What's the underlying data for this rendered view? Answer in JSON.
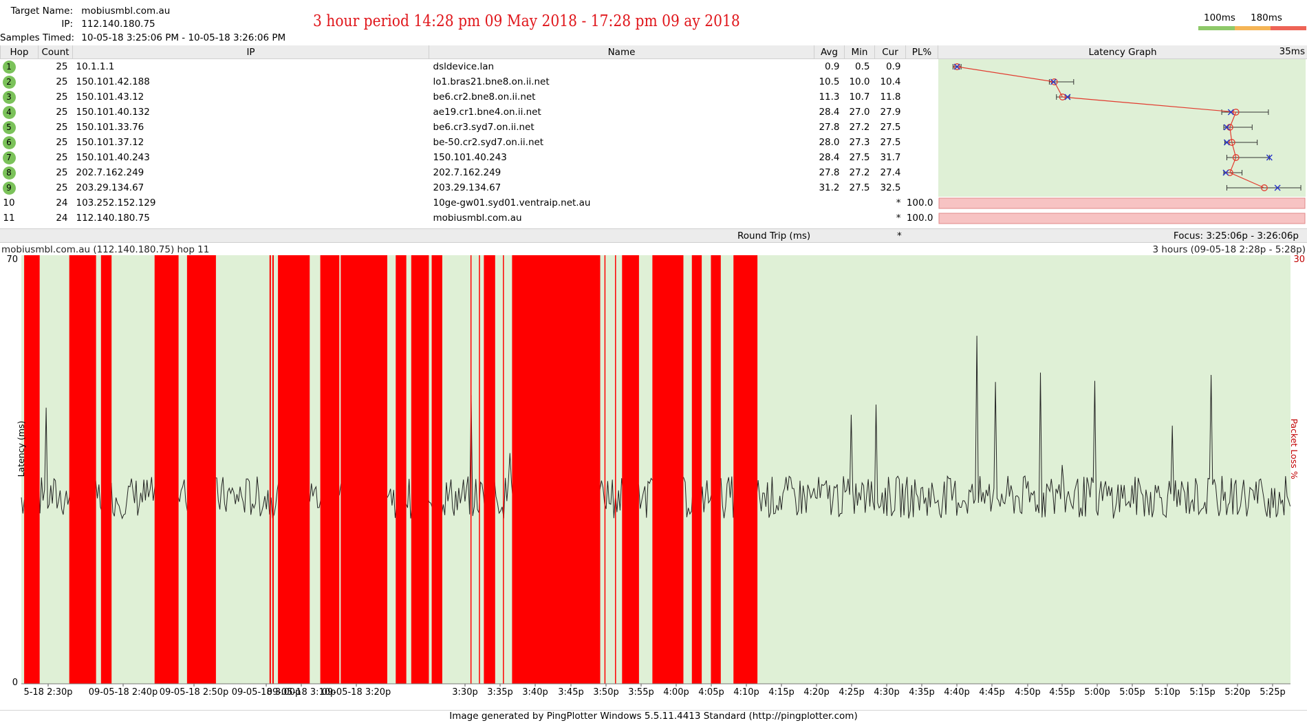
{
  "header": {
    "target_label": "Target Name:",
    "target_value": "mobiusmbl.com.au",
    "ip_label": "IP:",
    "ip_value": "112.140.180.75",
    "samples_label": "Samples Timed:",
    "samples_value": "10-05-18 3:25:06 PM - 10-05-18 3:26:06 PM",
    "annotation": "3 hour period 14:28 pm 09 May 2018 - 17:28 pm 09 ay 2018"
  },
  "latency_scale": {
    "label_100": "100ms",
    "label_180": "180ms",
    "colors": [
      "#8ec969",
      "#f5b556",
      "#ee6356"
    ]
  },
  "columns": {
    "hop": "Hop",
    "count": "Count",
    "ip": "IP",
    "name": "Name",
    "avg": "Avg",
    "min": "Min",
    "cur": "Cur",
    "pl": "PL%",
    "graph": "Latency Graph",
    "graph_max": "35ms"
  },
  "hops": [
    {
      "hop": "1",
      "count": "25",
      "ip": "10.1.1.1",
      "name": "dsldevice.lan",
      "avg": "0.9",
      "min": "0.5",
      "cur": "0.9",
      "pl": "",
      "ok": true,
      "avg_ms": 0.9,
      "min_ms": 0.5,
      "max_ms": 1.3,
      "cur_ms": 0.9
    },
    {
      "hop": "2",
      "count": "25",
      "ip": "150.101.42.188",
      "name": "lo1.bras21.bne8.on.ii.net",
      "avg": "10.5",
      "min": "10.0",
      "cur": "10.4",
      "pl": "",
      "ok": true,
      "avg_ms": 10.5,
      "min_ms": 10.0,
      "max_ms": 12.4,
      "cur_ms": 10.4
    },
    {
      "hop": "3",
      "count": "25",
      "ip": "150.101.43.12",
      "name": "be6.cr2.bne8.on.ii.net",
      "avg": "11.3",
      "min": "10.7",
      "cur": "11.8",
      "pl": "",
      "ok": true,
      "avg_ms": 11.3,
      "min_ms": 10.7,
      "max_ms": 12.0,
      "cur_ms": 11.8
    },
    {
      "hop": "4",
      "count": "25",
      "ip": "150.101.40.132",
      "name": "ae19.cr1.bne4.on.ii.net",
      "avg": "28.4",
      "min": "27.0",
      "cur": "27.9",
      "pl": "",
      "ok": true,
      "avg_ms": 28.4,
      "min_ms": 27.0,
      "max_ms": 31.6,
      "cur_ms": 27.9
    },
    {
      "hop": "5",
      "count": "25",
      "ip": "150.101.33.76",
      "name": "be6.cr3.syd7.on.ii.net",
      "avg": "27.8",
      "min": "27.2",
      "cur": "27.5",
      "pl": "",
      "ok": true,
      "avg_ms": 27.8,
      "min_ms": 27.2,
      "max_ms": 30.0,
      "cur_ms": 27.5
    },
    {
      "hop": "6",
      "count": "25",
      "ip": "150.101.37.12",
      "name": "be-50.cr2.syd7.on.ii.net",
      "avg": "28.0",
      "min": "27.3",
      "cur": "27.5",
      "pl": "",
      "ok": true,
      "avg_ms": 28.0,
      "min_ms": 27.3,
      "max_ms": 30.5,
      "cur_ms": 27.5
    },
    {
      "hop": "7",
      "count": "25",
      "ip": "150.101.40.243",
      "name": "150.101.40.243",
      "avg": "28.4",
      "min": "27.5",
      "cur": "31.7",
      "pl": "",
      "ok": true,
      "avg_ms": 28.4,
      "min_ms": 27.5,
      "max_ms": 31.7,
      "cur_ms": 31.7
    },
    {
      "hop": "8",
      "count": "25",
      "ip": "202.7.162.249",
      "name": "202.7.162.249",
      "avg": "27.8",
      "min": "27.2",
      "cur": "27.4",
      "pl": "",
      "ok": true,
      "avg_ms": 27.8,
      "min_ms": 27.2,
      "max_ms": 29.0,
      "cur_ms": 27.4
    },
    {
      "hop": "9",
      "count": "25",
      "ip": "203.29.134.67",
      "name": "203.29.134.67",
      "avg": "31.2",
      "min": "27.5",
      "cur": "32.5",
      "pl": "",
      "ok": true,
      "avg_ms": 31.2,
      "min_ms": 27.5,
      "max_ms": 34.8,
      "cur_ms": 32.5
    },
    {
      "hop": "10",
      "count": "24",
      "ip": "103.252.152.129",
      "name": "10ge-gw01.syd01.ventraip.net.au",
      "avg": "",
      "min": "",
      "cur": "*",
      "pl": "100.0",
      "ok": false
    },
    {
      "hop": "11",
      "count": "24",
      "ip": "112.140.180.75",
      "name": "mobiusmbl.com.au",
      "avg": "",
      "min": "",
      "cur": "*",
      "pl": "100.0",
      "ok": false
    }
  ],
  "round_trip": {
    "label": "Round Trip (ms)",
    "cur": "*",
    "focus": "Focus: 3:25:06p - 3:26:06p"
  },
  "timeline": {
    "title": "mobiusmbl.com.au (112.140.180.75) hop 11",
    "range": "3 hours (09-05-18 2:28p - 5:28p)",
    "y_label": "Latency (ms)",
    "y2_label": "Packet Loss %",
    "y_top": "70",
    "y_bottom": "0",
    "y2_top": "30"
  },
  "chart_data": {
    "type": "line",
    "y_label": "Latency (ms)",
    "y2_label": "Packet Loss %",
    "y_range": [
      0,
      70
    ],
    "x_range": [
      "09-05-18 2:28p",
      "09-05-18 5:28p"
    ],
    "x_ticks": [
      "5-18 2:30p",
      "09-05-18 2:40p",
      "09-05-18 2:50p",
      "09-05-18 3:00p",
      "09-05-18 3:10p",
      "09-05-18 3:20p",
      "3:30p",
      "3:35p",
      "3:40p",
      "3:45p",
      "3:50p",
      "3:55p",
      "4:00p",
      "4:05p",
      "4:10p",
      "4:15p",
      "4:20p",
      "4:25p",
      "4:30p",
      "4:35p",
      "4:40p",
      "4:45p",
      "4:50p",
      "4:55p",
      "5:00p",
      "5:05p",
      "5:10p",
      "5:15p",
      "5:20p",
      "5:25p"
    ],
    "loss_periods_min": [
      [
        0.4,
        2.6
      ],
      [
        6.8,
        10.6
      ],
      [
        11.3,
        12.8
      ],
      [
        18.9,
        22.3
      ],
      [
        23.5,
        27.6
      ],
      [
        35.2,
        35.4
      ],
      [
        35.6,
        35.8
      ],
      [
        36.4,
        40.9
      ],
      [
        42.4,
        45.1
      ],
      [
        45.3,
        51.9
      ],
      [
        53.1,
        54.6
      ],
      [
        55.3,
        57.8
      ],
      [
        58.2,
        59.7
      ],
      [
        63.7,
        63.8
      ],
      [
        64.9,
        65.0
      ],
      [
        65.6,
        67.2
      ],
      [
        68.3,
        68.4
      ],
      [
        69.6,
        82.1
      ],
      [
        82.7,
        82.8
      ],
      [
        84.2,
        84.3
      ],
      [
        85.2,
        87.6
      ],
      [
        89.5,
        93.9
      ],
      [
        95.1,
        96.5
      ],
      [
        97.8,
        99.2
      ],
      [
        101.0,
        104.4
      ]
    ],
    "latency_band_ms": [
      25,
      34
    ]
  },
  "footer": {
    "text": "Image generated by PingPlotter Windows 5.5.11.4413 Standard (http://pingplotter.com)"
  }
}
